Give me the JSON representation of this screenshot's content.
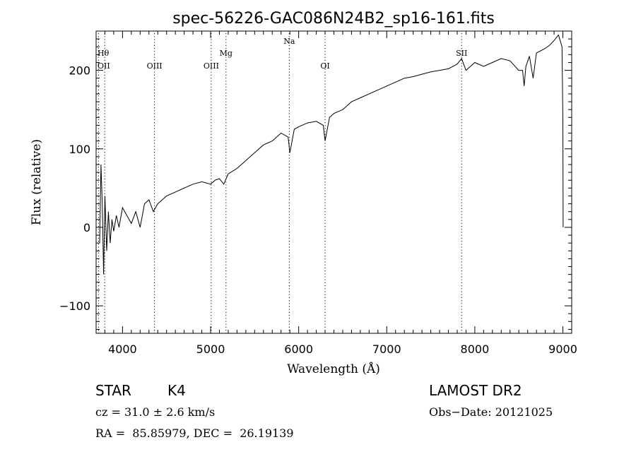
{
  "chart_data": {
    "type": "line",
    "title": "spec-56226-GAC086N24B2_sp16-161.fits",
    "xlabel": "Wavelength (Å)",
    "ylabel": "Flux (relative)",
    "xlim": [
      3700,
      9100
    ],
    "ylim": [
      -135,
      250
    ],
    "x_ticks": [
      4000,
      5000,
      6000,
      7000,
      8000,
      9000
    ],
    "x_tick_labels": [
      "4000",
      "5000",
      "6000",
      "7000",
      "8000",
      "9000"
    ],
    "y_ticks": [
      -100,
      0,
      100,
      200
    ],
    "y_tick_labels": [
      "−100",
      "0",
      "100",
      "200"
    ],
    "grid": false,
    "line_color": "#000000",
    "lines": [
      {
        "label": "Hθ",
        "x": 3798
      },
      {
        "label": "OII",
        "x": 3727
      },
      {
        "label": "OIII",
        "x": 4363
      },
      {
        "label": "OIII",
        "x": 5007
      },
      {
        "label": "Mg",
        "x": 5175
      },
      {
        "label": "Na",
        "x": 5893
      },
      {
        "label": "OI",
        "x": 6300
      },
      {
        "label": "SII",
        "x": 7850
      }
    ],
    "series": [
      {
        "x": [
          3740,
          3755,
          3770,
          3785,
          3800,
          3820,
          3840,
          3860,
          3880,
          3900,
          3930,
          3960,
          4000,
          4050,
          4100,
          4150,
          4200,
          4250,
          4300,
          4350,
          4400,
          4450,
          4500,
          4600,
          4700,
          4800,
          4900,
          5000,
          5050,
          5100,
          5150,
          5200,
          5300,
          5400,
          5500,
          5600,
          5700,
          5800,
          5880,
          5900,
          5950,
          6000,
          6100,
          6200,
          6280,
          6300,
          6350,
          6400,
          6500,
          6600,
          6700,
          6800,
          6900,
          7000,
          7100,
          7200,
          7300,
          7400,
          7500,
          7600,
          7700,
          7800,
          7850,
          7900,
          7950,
          8000,
          8100,
          8200,
          8300,
          8400,
          8498,
          8542,
          8560,
          8580,
          8620,
          8662,
          8700,
          8750,
          8800,
          8850,
          8900,
          8950,
          8990,
          9000,
          9003
        ],
        "y": [
          -20,
          80,
          30,
          -60,
          40,
          -30,
          20,
          -20,
          10,
          -5,
          15,
          0,
          25,
          15,
          5,
          20,
          0,
          30,
          35,
          20,
          30,
          35,
          40,
          45,
          50,
          55,
          58,
          55,
          60,
          62,
          55,
          68,
          75,
          85,
          95,
          105,
          110,
          120,
          115,
          95,
          125,
          128,
          133,
          135,
          130,
          110,
          140,
          145,
          150,
          160,
          165,
          170,
          175,
          180,
          185,
          190,
          192,
          195,
          198,
          200,
          202,
          208,
          215,
          200,
          205,
          210,
          205,
          210,
          215,
          212,
          200,
          200,
          180,
          205,
          218,
          190,
          222,
          225,
          228,
          232,
          238,
          245,
          230,
          140,
          0
        ]
      }
    ]
  },
  "info": {
    "class": "STAR",
    "subclass": "K4",
    "survey": "LAMOST DR2",
    "cz": "cz = 31.0 ± 2.6 km/s",
    "obs_date": "Obs−Date: 20121025",
    "radec": "RA =  85.85979, DEC =  26.19139"
  }
}
